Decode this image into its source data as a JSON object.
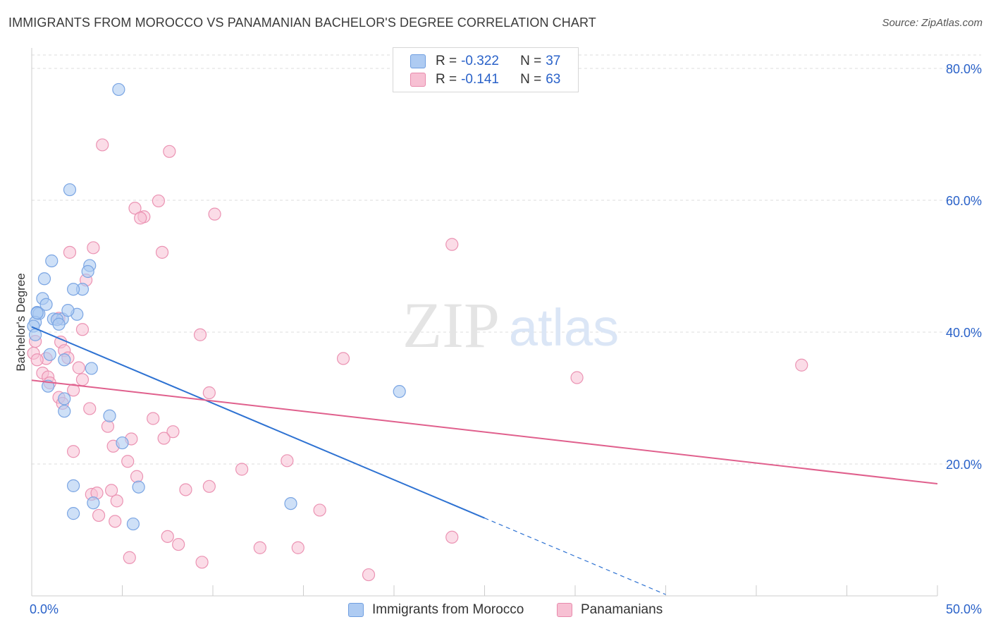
{
  "header": {
    "title": "IMMIGRANTS FROM MOROCCO VS PANAMANIAN BACHELOR'S DEGREE CORRELATION CHART",
    "source": "Source: ZipAtlas.com"
  },
  "watermark": {
    "zip": "ZIP",
    "atlas": "atlas"
  },
  "legend": {
    "rows": [
      {
        "r_label": "R =",
        "r_value": "-0.322",
        "n_label": "N =",
        "n_value": "37",
        "color": "#aecbf2",
        "border": "#6f9ee0"
      },
      {
        "r_label": "R =",
        "r_value": "-0.141",
        "n_label": "N =",
        "n_value": "63",
        "color": "#f7c0d3",
        "border": "#e88aac"
      }
    ]
  },
  "colors": {
    "blue_fill": "#aecbf2",
    "blue_stroke": "#7aa5e3",
    "blue_line": "#2e72d2",
    "pink_fill": "#f7c0d3",
    "pink_stroke": "#eb93b3",
    "pink_line": "#e0608d",
    "tick_text": "#2a62c9",
    "grid": "#dddddd"
  },
  "chart_data": {
    "type": "scatter",
    "xlabel": "",
    "ylabel": "Bachelor's Degree",
    "xlim": [
      0,
      50
    ],
    "ylim": [
      0,
      80
    ],
    "x_tick_labels": [
      {
        "value": 0,
        "label": "0.0%"
      },
      {
        "value": 50,
        "label": "50.0%"
      }
    ],
    "y_tick_labels": [
      {
        "value": 20,
        "label": "20.0%"
      },
      {
        "value": 40,
        "label": "40.0%"
      },
      {
        "value": 60,
        "label": "60.0%"
      },
      {
        "value": 80,
        "label": "80.0%"
      }
    ],
    "grid": true,
    "legend_position": "top-center",
    "series": [
      {
        "name": "Immigrants from Morocco",
        "r": -0.322,
        "n": 37,
        "trend": {
          "x_start": 0,
          "y_start": 40.8,
          "x_solid_end": 25,
          "x_dash_end": 35,
          "y_at_solid_end": 11.8,
          "y_at_dash_end": 0.2
        },
        "points": [
          [
            4.8,
            76.8
          ],
          [
            2.1,
            61.6
          ],
          [
            1.1,
            50.8
          ],
          [
            3.2,
            50.1
          ],
          [
            0.7,
            48.1
          ],
          [
            3.1,
            49.2
          ],
          [
            2.8,
            46.5
          ],
          [
            2.3,
            46.5
          ],
          [
            0.6,
            45.1
          ],
          [
            0.8,
            44.2
          ],
          [
            0.3,
            43.0
          ],
          [
            0.4,
            42.8
          ],
          [
            2.5,
            42.7
          ],
          [
            1.2,
            42.0
          ],
          [
            1.7,
            42.0
          ],
          [
            2.0,
            43.3
          ],
          [
            1.4,
            41.9
          ],
          [
            0.2,
            41.5
          ],
          [
            1.5,
            41.2
          ],
          [
            0.1,
            40.9
          ],
          [
            0.2,
            39.6
          ],
          [
            1.0,
            36.6
          ],
          [
            1.8,
            35.8
          ],
          [
            3.3,
            34.5
          ],
          [
            0.9,
            31.8
          ],
          [
            1.8,
            29.9
          ],
          [
            1.8,
            28.0
          ],
          [
            4.3,
            27.3
          ],
          [
            5.0,
            23.2
          ],
          [
            2.3,
            16.7
          ],
          [
            5.9,
            16.5
          ],
          [
            2.3,
            12.5
          ],
          [
            3.4,
            14.1
          ],
          [
            5.6,
            10.9
          ],
          [
            20.3,
            31.0
          ],
          [
            14.3,
            14.0
          ],
          [
            0.3,
            42.9
          ]
        ]
      },
      {
        "name": "Panamanians",
        "r": -0.141,
        "n": 63,
        "trend": {
          "x_start": 0,
          "y_start": 32.7,
          "x_end": 50,
          "y_end": 17.0
        },
        "points": [
          [
            3.9,
            68.4
          ],
          [
            7.6,
            67.4
          ],
          [
            7.0,
            59.9
          ],
          [
            5.7,
            58.8
          ],
          [
            6.2,
            57.5
          ],
          [
            10.1,
            57.9
          ],
          [
            6.0,
            57.3
          ],
          [
            2.1,
            52.1
          ],
          [
            3.4,
            52.8
          ],
          [
            7.2,
            52.1
          ],
          [
            23.2,
            53.3
          ],
          [
            3.0,
            47.9
          ],
          [
            1.5,
            42.1
          ],
          [
            2.8,
            40.4
          ],
          [
            9.3,
            39.6
          ],
          [
            1.6,
            38.5
          ],
          [
            0.2,
            38.6
          ],
          [
            0.1,
            36.8
          ],
          [
            0.8,
            36.0
          ],
          [
            1.8,
            37.2
          ],
          [
            2.0,
            36.1
          ],
          [
            0.3,
            35.8
          ],
          [
            17.2,
            36.0
          ],
          [
            42.5,
            35.0
          ],
          [
            2.6,
            34.6
          ],
          [
            0.6,
            33.8
          ],
          [
            0.9,
            33.2
          ],
          [
            2.8,
            32.8
          ],
          [
            1.0,
            32.3
          ],
          [
            2.3,
            31.2
          ],
          [
            9.8,
            30.8
          ],
          [
            30.1,
            33.1
          ],
          [
            1.5,
            30.1
          ],
          [
            1.7,
            29.2
          ],
          [
            3.2,
            28.4
          ],
          [
            6.7,
            26.9
          ],
          [
            4.2,
            25.7
          ],
          [
            7.8,
            24.9
          ],
          [
            5.5,
            23.8
          ],
          [
            7.3,
            23.9
          ],
          [
            4.5,
            22.7
          ],
          [
            2.3,
            21.9
          ],
          [
            5.3,
            20.4
          ],
          [
            14.1,
            20.5
          ],
          [
            11.6,
            19.2
          ],
          [
            5.8,
            18.1
          ],
          [
            9.8,
            16.6
          ],
          [
            8.5,
            16.1
          ],
          [
            4.4,
            16.0
          ],
          [
            3.3,
            15.4
          ],
          [
            3.6,
            15.6
          ],
          [
            4.7,
            14.4
          ],
          [
            15.9,
            13.0
          ],
          [
            3.7,
            12.2
          ],
          [
            4.6,
            11.3
          ],
          [
            7.5,
            9.0
          ],
          [
            8.1,
            7.8
          ],
          [
            12.6,
            7.3
          ],
          [
            14.7,
            7.3
          ],
          [
            23.2,
            8.9
          ],
          [
            5.4,
            5.8
          ],
          [
            9.4,
            5.1
          ],
          [
            18.6,
            3.2
          ]
        ]
      }
    ]
  }
}
